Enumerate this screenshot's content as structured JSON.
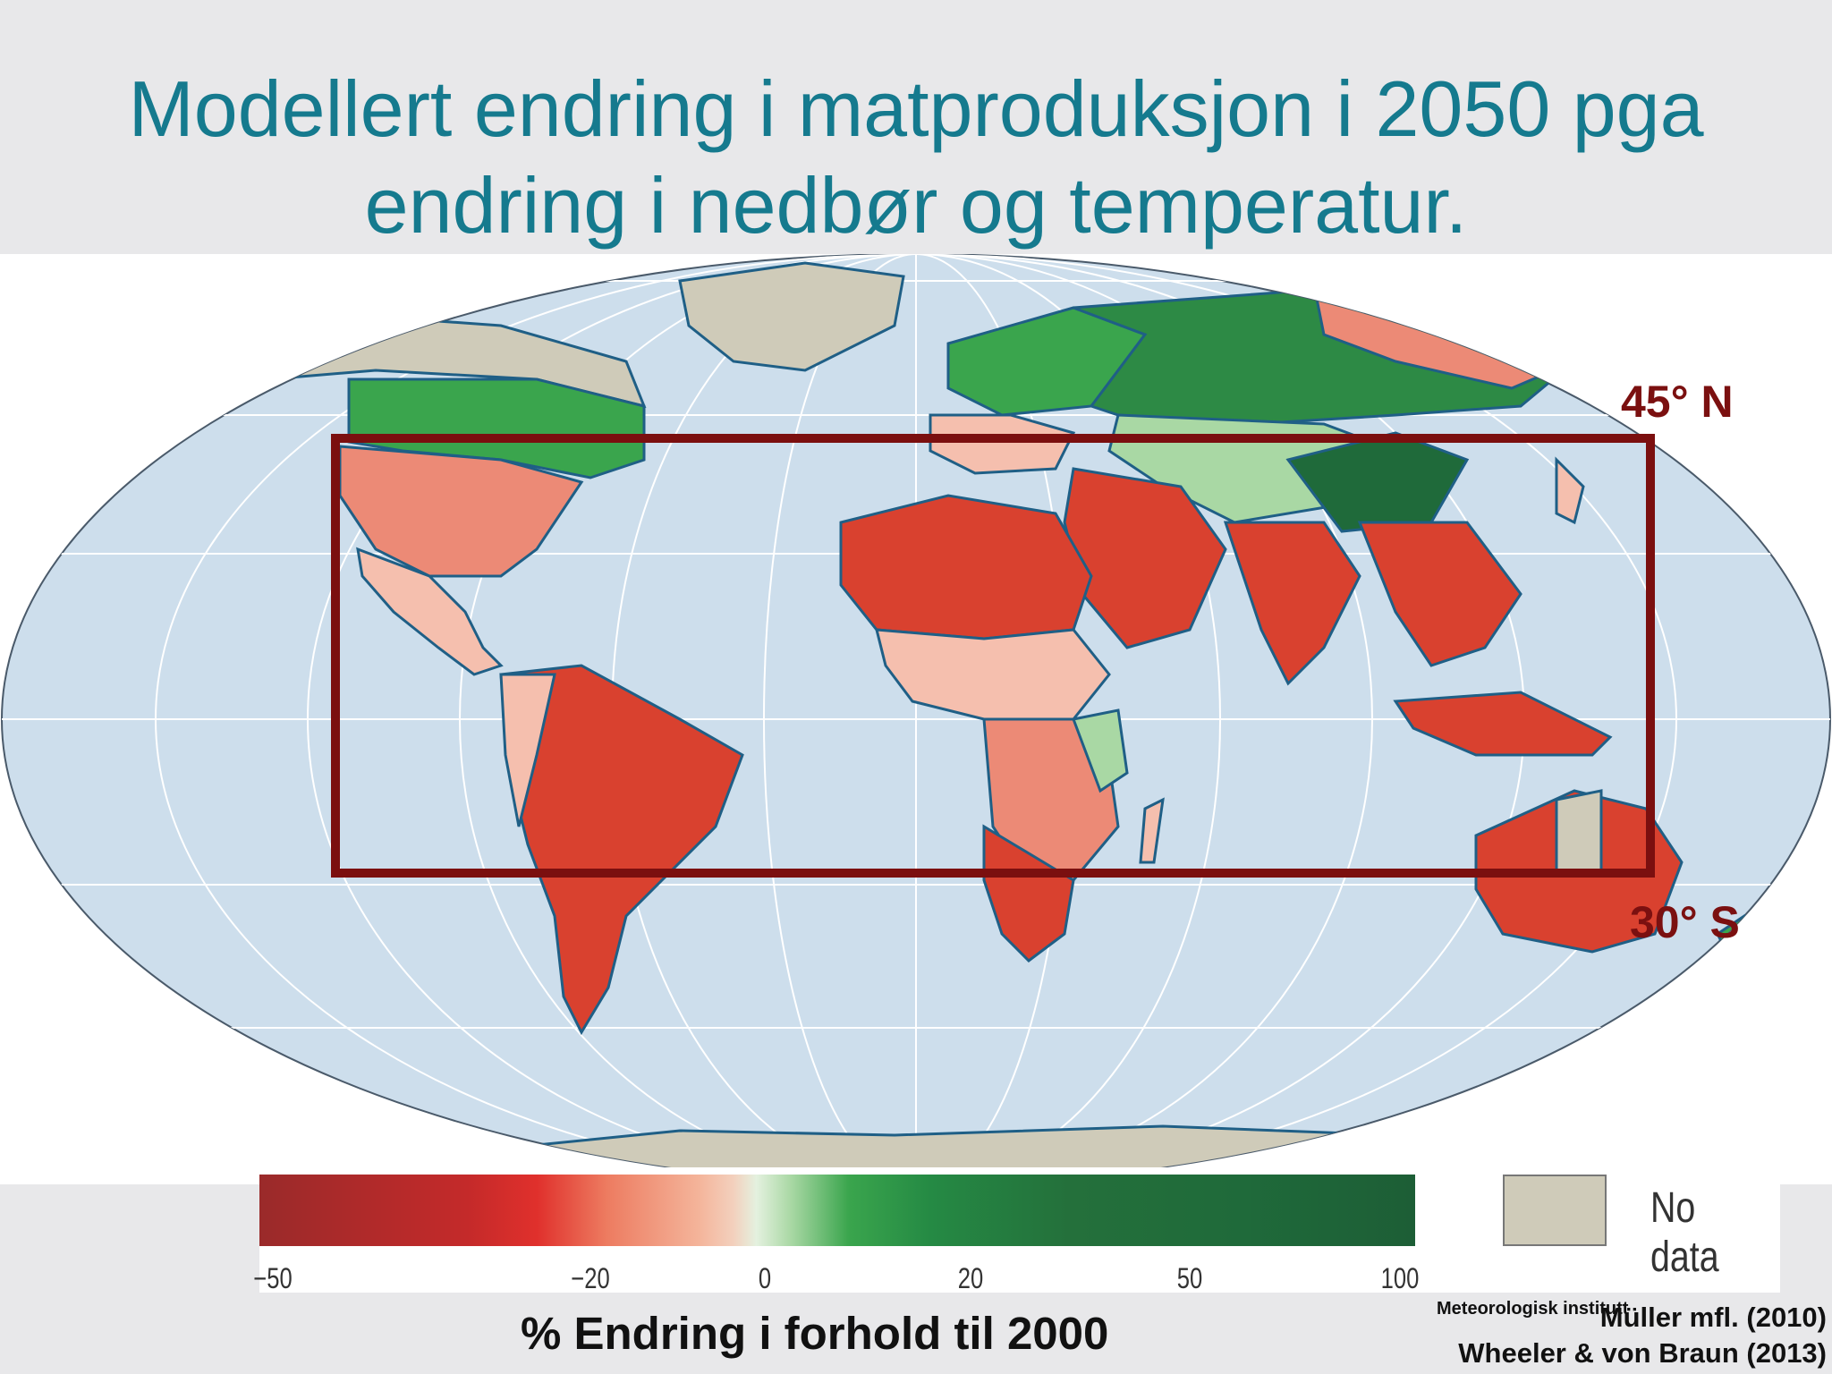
{
  "title_line1": "Modellert endring i matproduksjon i 2050 pga",
  "title_line2": "endring i nedbør og temperatur.",
  "latitude_labels": {
    "north": "45° N",
    "south": "30° S"
  },
  "legend": {
    "ticks": [
      "−50",
      "−20",
      "0",
      "20",
      "50",
      "100"
    ],
    "no_data_label": "No data",
    "axis_caption": "% Endring i forhold til 2000"
  },
  "credits": {
    "institute": "Meteorologisk institutt",
    "source_1": "Müller mfl. (2010)",
    "source_2": "Wheeler & von Braun (2013)"
  },
  "colors": {
    "title": "#157a8e",
    "box": "#7b0f0f",
    "ocean": "#cddeec",
    "no_data": "#cfcbb9",
    "strong_loss": "#d9412f",
    "loss": "#ec8a76",
    "slight_loss": "#f5bfae",
    "gain": "#3aa54d",
    "strong_gain": "#1f6a3a"
  },
  "icons": {
    "outline": "map-outline-box"
  }
}
